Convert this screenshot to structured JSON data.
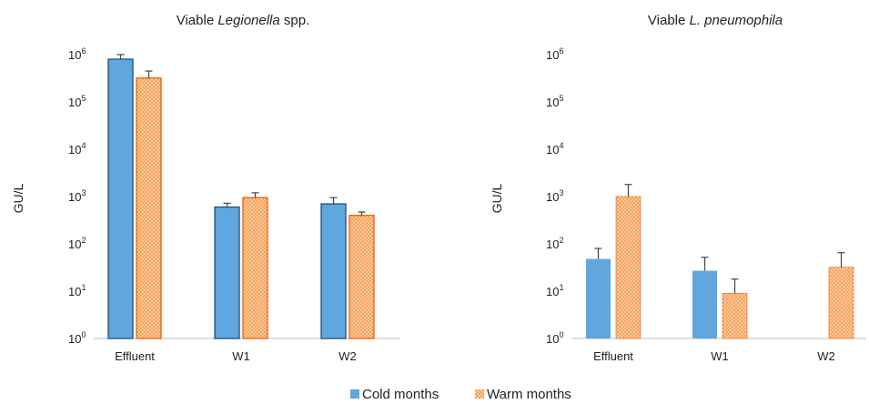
{
  "colors": {
    "cold": "#5fa7de",
    "cold_edge": "#1f4f7a",
    "warm_fill": "#f7a35c",
    "warm_edge": "#e8600c",
    "warm_dot": "#fde3c8"
  },
  "legend": [
    {
      "name": "Cold months",
      "color": "#5fa7de"
    },
    {
      "name": "Warm months",
      "color": "#f7a35c",
      "pattern": "dotted"
    }
  ],
  "chart_data": [
    {
      "type": "bar",
      "title_prefix": "Viable ",
      "title_italic": "Legionella",
      "title_suffix": " spp.",
      "ylabel": "GU/L",
      "yscale": "log",
      "ylim": [
        1,
        1000000
      ],
      "yticks": [
        {
          "base": "10",
          "exp": "0"
        },
        {
          "base": "10",
          "exp": "1"
        },
        {
          "base": "10",
          "exp": "2"
        },
        {
          "base": "10",
          "exp": "3"
        },
        {
          "base": "10",
          "exp": "4"
        },
        {
          "base": "10",
          "exp": "5"
        },
        {
          "base": "10",
          "exp": "6"
        }
      ],
      "categories": [
        "Effluent",
        "W1",
        "W2"
      ],
      "bar_outline": true,
      "series": [
        {
          "name": "Cold months",
          "values": [
            800000,
            600,
            700
          ],
          "err_upper": [
            1000000,
            720,
            950
          ]
        },
        {
          "name": "Warm months",
          "values": [
            320000,
            950,
            400
          ],
          "err_upper": [
            450000,
            1200,
            470
          ]
        }
      ]
    },
    {
      "type": "bar",
      "title_prefix": "Viable ",
      "title_italic": "L. pneumophila",
      "title_suffix": "",
      "ylabel": "GU/L",
      "yscale": "log",
      "ylim": [
        1,
        1000000
      ],
      "yticks": [
        {
          "base": "10",
          "exp": "0"
        },
        {
          "base": "10",
          "exp": "1"
        },
        {
          "base": "10",
          "exp": "2"
        },
        {
          "base": "10",
          "exp": "3"
        },
        {
          "base": "10",
          "exp": "4"
        },
        {
          "base": "10",
          "exp": "5"
        },
        {
          "base": "10",
          "exp": "6"
        }
      ],
      "categories": [
        "Effluent",
        "W1",
        "W2"
      ],
      "bar_outline": false,
      "series": [
        {
          "name": "Cold months",
          "values": [
            48,
            27,
            null
          ],
          "err_upper": [
            80,
            52,
            null
          ]
        },
        {
          "name": "Warm months",
          "values": [
            1000,
            9,
            32
          ],
          "err_upper": [
            1800,
            18,
            65
          ]
        }
      ]
    }
  ]
}
